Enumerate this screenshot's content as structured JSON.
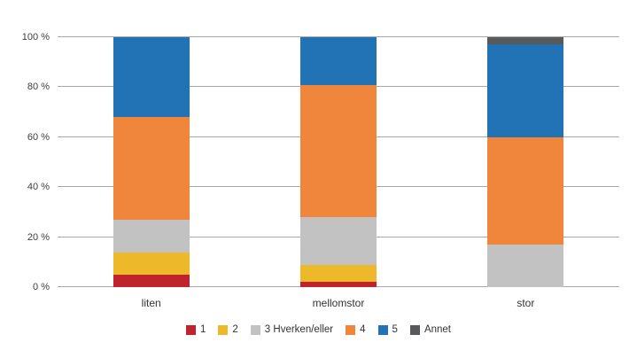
{
  "chart_data": {
    "type": "bar",
    "stacked": true,
    "percent": true,
    "title": "",
    "xlabel": "",
    "ylabel": "",
    "categories": [
      "liten",
      "mellomstor",
      "stor"
    ],
    "series": [
      {
        "name": "1",
        "color": "#c0232c",
        "values": [
          5,
          2,
          0
        ]
      },
      {
        "name": "2",
        "color": "#edb829",
        "values": [
          9,
          7,
          0
        ]
      },
      {
        "name": "3 Hverken/eller",
        "color": "#c3c2c2",
        "values": [
          13,
          19,
          17
        ]
      },
      {
        "name": "4",
        "color": "#f0863b",
        "values": [
          41,
          53,
          43
        ]
      },
      {
        "name": "5",
        "color": "#2173b6",
        "values": [
          32,
          19,
          37
        ]
      },
      {
        "name": "Annet",
        "color": "#58595b",
        "values": [
          0,
          0,
          3
        ]
      }
    ],
    "y_ticks": [
      {
        "label": "0 %",
        "value": 0
      },
      {
        "label": "20 %",
        "value": 20
      },
      {
        "label": "40 %",
        "value": 40
      },
      {
        "label": "60 %",
        "value": 60
      },
      {
        "label": "80 %",
        "value": 80
      },
      {
        "label": "100 %",
        "value": 100
      }
    ],
    "ylim": [
      0,
      100
    ],
    "grid": true,
    "legend_position": "bottom"
  }
}
